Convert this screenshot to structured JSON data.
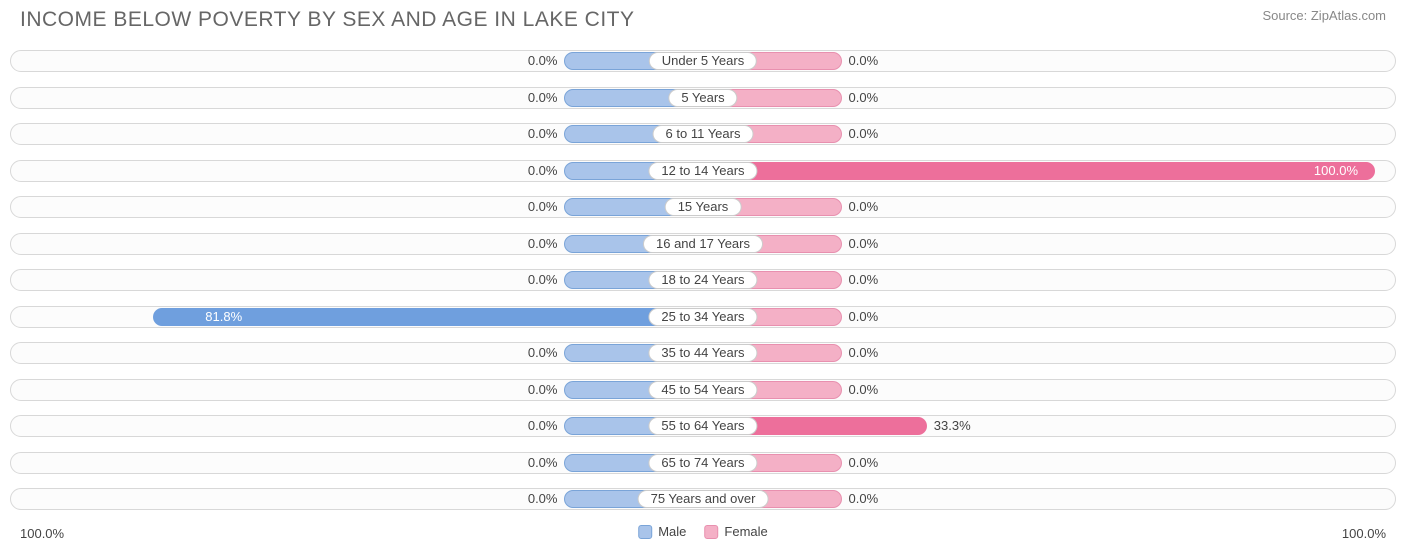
{
  "title": "INCOME BELOW POVERTY BY SEX AND AGE IN LAKE CITY",
  "source": "Source: ZipAtlas.com",
  "chart": {
    "type": "diverging-bar",
    "axis_max_label": "100.0%",
    "base_bar_pct": 10.0,
    "colors": {
      "male_light": "#a9c4ea",
      "male_dark": "#6f9fde",
      "male_border": "#7aa4d8",
      "female_light": "#f4b0c6",
      "female_dark": "#ed6f9b",
      "female_border": "#e890af",
      "track_border": "#d8d8d8",
      "track_bg": "#fcfcfc",
      "text": "#444444",
      "title_text": "#666666"
    },
    "legend": [
      {
        "label": "Male",
        "swatch_fill": "#a9c4ea",
        "swatch_border": "#7aa4d8"
      },
      {
        "label": "Female",
        "swatch_fill": "#f4b0c6",
        "swatch_border": "#e890af"
      }
    ],
    "rows": [
      {
        "category": "Under 5 Years",
        "male": 0.0,
        "male_label": "0.0%",
        "female": 0.0,
        "female_label": "0.0%"
      },
      {
        "category": "5 Years",
        "male": 0.0,
        "male_label": "0.0%",
        "female": 0.0,
        "female_label": "0.0%"
      },
      {
        "category": "6 to 11 Years",
        "male": 0.0,
        "male_label": "0.0%",
        "female": 0.0,
        "female_label": "0.0%"
      },
      {
        "category": "12 to 14 Years",
        "male": 0.0,
        "male_label": "0.0%",
        "female": 100.0,
        "female_label": "100.0%"
      },
      {
        "category": "15 Years",
        "male": 0.0,
        "male_label": "0.0%",
        "female": 0.0,
        "female_label": "0.0%"
      },
      {
        "category": "16 and 17 Years",
        "male": 0.0,
        "male_label": "0.0%",
        "female": 0.0,
        "female_label": "0.0%"
      },
      {
        "category": "18 to 24 Years",
        "male": 0.0,
        "male_label": "0.0%",
        "female": 0.0,
        "female_label": "0.0%"
      },
      {
        "category": "25 to 34 Years",
        "male": 81.8,
        "male_label": "81.8%",
        "female": 0.0,
        "female_label": "0.0%"
      },
      {
        "category": "35 to 44 Years",
        "male": 0.0,
        "male_label": "0.0%",
        "female": 0.0,
        "female_label": "0.0%"
      },
      {
        "category": "45 to 54 Years",
        "male": 0.0,
        "male_label": "0.0%",
        "female": 0.0,
        "female_label": "0.0%"
      },
      {
        "category": "55 to 64 Years",
        "male": 0.0,
        "male_label": "0.0%",
        "female": 33.3,
        "female_label": "33.3%"
      },
      {
        "category": "65 to 74 Years",
        "male": 0.0,
        "male_label": "0.0%",
        "female": 0.0,
        "female_label": "0.0%"
      },
      {
        "category": "75 Years and over",
        "male": 0.0,
        "male_label": "0.0%",
        "female": 0.0,
        "female_label": "0.0%"
      }
    ]
  }
}
